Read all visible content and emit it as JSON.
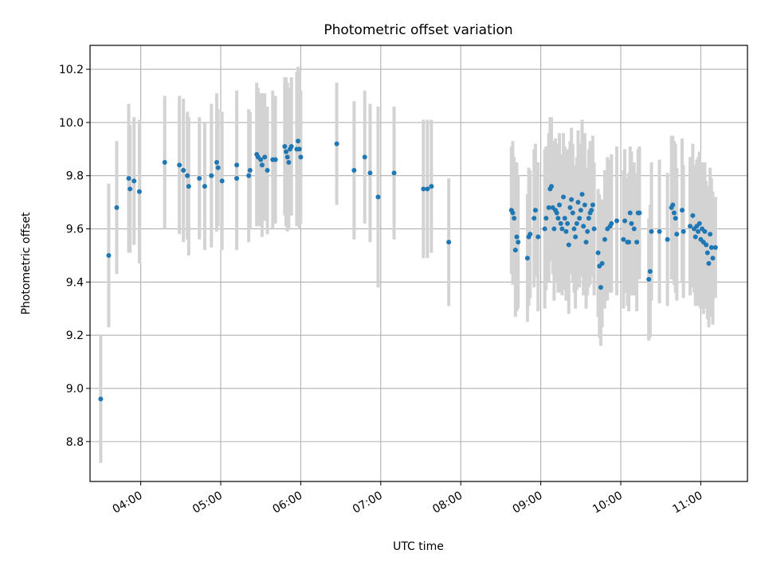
{
  "chart_data": {
    "type": "scatter",
    "title": "Photometric offset variation",
    "xlabel": "UTC time",
    "ylabel": "Photometric offset",
    "x_unit": "UTC time (HH:MM)",
    "xlim": [
      "03:22",
      "11:35"
    ],
    "ylim": [
      8.65,
      10.29
    ],
    "xticks": [
      "04:00",
      "05:00",
      "06:00",
      "07:00",
      "08:00",
      "09:00",
      "10:00",
      "11:00"
    ],
    "yticks": [
      "8.8",
      "9.0",
      "9.2",
      "9.4",
      "9.6",
      "9.8",
      "10.0",
      "10.2"
    ],
    "grid": true,
    "marker_color": "#1f77b4",
    "errorbar_color": "#d3d3d3",
    "series": [
      {
        "points": [
          [
            "03:30",
            8.96,
            0.24
          ],
          [
            "03:36",
            9.5,
            0.27
          ],
          [
            "03:42",
            9.68,
            0.25
          ],
          [
            "03:51",
            9.79,
            0.28
          ],
          [
            "03:52",
            9.75,
            0.24
          ],
          [
            "03:55",
            9.78,
            0.24
          ],
          [
            "03:59",
            9.74,
            0.27
          ],
          [
            "04:18",
            9.85,
            0.25
          ],
          [
            "04:29",
            9.84,
            0.26
          ],
          [
            "04:32",
            9.82,
            0.27
          ],
          [
            "04:35",
            9.8,
            0.24
          ],
          [
            "04:36",
            9.76,
            0.26
          ],
          [
            "04:44",
            9.79,
            0.23
          ],
          [
            "04:48",
            9.76,
            0.24
          ],
          [
            "04:53",
            9.8,
            0.27
          ],
          [
            "04:57",
            9.85,
            0.26
          ],
          [
            "04:58",
            9.83,
            0.22
          ],
          [
            "05:01",
            9.78,
            0.26
          ],
          [
            "05:12",
            9.84,
            0.28
          ],
          [
            "05:12",
            9.79,
            0.27
          ],
          [
            "05:21",
            9.8,
            0.25
          ],
          [
            "05:22",
            9.82,
            0.22
          ],
          [
            "05:27",
            9.88,
            0.27
          ],
          [
            "05:28",
            9.87,
            0.26
          ],
          [
            "05:30",
            9.86,
            0.25
          ],
          [
            "05:31",
            9.84,
            0.27
          ],
          [
            "05:33",
            9.87,
            0.24
          ],
          [
            "05:35",
            9.82,
            0.24
          ],
          [
            "05:39",
            9.86,
            0.26
          ],
          [
            "05:41",
            9.86,
            0.24
          ],
          [
            "05:48",
            9.91,
            0.26
          ],
          [
            "05:49",
            9.89,
            0.28
          ],
          [
            "05:50",
            9.87,
            0.28
          ],
          [
            "05:51",
            9.85,
            0.25
          ],
          [
            "05:52",
            9.9,
            0.23
          ],
          [
            "05:53",
            9.91,
            0.26
          ],
          [
            "05:57",
            9.9,
            0.29
          ],
          [
            "05:58",
            9.93,
            0.28
          ],
          [
            "05:59",
            9.9,
            0.3
          ],
          [
            "06:00",
            9.87,
            0.25
          ],
          [
            "06:27",
            9.92,
            0.23
          ],
          [
            "06:40",
            9.82,
            0.26
          ],
          [
            "06:48",
            9.87,
            0.25
          ],
          [
            "06:52",
            9.81,
            0.26
          ],
          [
            "06:58",
            9.72,
            0.34
          ],
          [
            "07:10",
            9.81,
            0.25
          ],
          [
            "07:32",
            9.75,
            0.26
          ],
          [
            "07:35",
            9.75,
            0.26
          ],
          [
            "07:38",
            9.76,
            0.25
          ],
          [
            "07:51",
            9.55,
            0.24
          ],
          [
            "08:38",
            9.67,
            0.24
          ],
          [
            "08:39",
            9.66,
            0.27
          ],
          [
            "08:40",
            9.64,
            0.23
          ],
          [
            "08:41",
            9.52,
            0.25
          ],
          [
            "08:42",
            9.57,
            0.28
          ],
          [
            "08:43",
            9.55,
            0.25
          ],
          [
            "08:50",
            9.49,
            0.24
          ],
          [
            "08:51",
            9.57,
            0.26
          ],
          [
            "08:52",
            9.58,
            0.24
          ],
          [
            "08:55",
            9.64,
            0.26
          ],
          [
            "08:56",
            9.67,
            0.25
          ],
          [
            "08:58",
            9.57,
            0.28
          ],
          [
            "09:03",
            9.6,
            0.3
          ],
          [
            "09:04",
            9.64,
            0.27
          ],
          [
            "09:06",
            9.68,
            0.28
          ],
          [
            "09:07",
            9.75,
            0.27
          ],
          [
            "09:08",
            9.76,
            0.26
          ],
          [
            "09:09",
            9.68,
            0.25
          ],
          [
            "09:10",
            9.6,
            0.27
          ],
          [
            "09:11",
            9.67,
            0.27
          ],
          [
            "09:12",
            9.66,
            0.25
          ],
          [
            "09:13",
            9.64,
            0.28
          ],
          [
            "09:14",
            9.69,
            0.27
          ],
          [
            "09:15",
            9.62,
            0.26
          ],
          [
            "09:16",
            9.6,
            0.25
          ],
          [
            "09:17",
            9.72,
            0.24
          ],
          [
            "09:18",
            9.64,
            0.27
          ],
          [
            "09:19",
            9.59,
            0.26
          ],
          [
            "09:20",
            9.62,
            0.28
          ],
          [
            "09:21",
            9.54,
            0.26
          ],
          [
            "09:22",
            9.68,
            0.25
          ],
          [
            "09:23",
            9.71,
            0.27
          ],
          [
            "09:24",
            9.66,
            0.26
          ],
          [
            "09:25",
            9.6,
            0.24
          ],
          [
            "09:26",
            9.57,
            0.27
          ],
          [
            "09:27",
            9.62,
            0.25
          ],
          [
            "09:28",
            9.7,
            0.27
          ],
          [
            "09:29",
            9.64,
            0.26
          ],
          [
            "09:30",
            9.67,
            0.25
          ],
          [
            "09:31",
            9.73,
            0.28
          ],
          [
            "09:32",
            9.61,
            0.26
          ],
          [
            "09:33",
            9.69,
            0.27
          ],
          [
            "09:34",
            9.55,
            0.25
          ],
          [
            "09:35",
            9.59,
            0.24
          ],
          [
            "09:36",
            9.64,
            0.26
          ],
          [
            "09:37",
            9.66,
            0.27
          ],
          [
            "09:38",
            9.67,
            0.25
          ],
          [
            "09:39",
            9.69,
            0.26
          ],
          [
            "09:40",
            9.6,
            0.25
          ],
          [
            "09:43",
            9.51,
            0.24
          ],
          [
            "09:44",
            9.46,
            0.27
          ],
          [
            "09:45",
            9.38,
            0.22
          ],
          [
            "09:46",
            9.47,
            0.24
          ],
          [
            "09:48",
            9.56,
            0.26
          ],
          [
            "09:50",
            9.6,
            0.27
          ],
          [
            "09:52",
            9.61,
            0.25
          ],
          [
            "09:53",
            9.62,
            0.26
          ],
          [
            "09:57",
            9.63,
            0.28
          ],
          [
            "10:02",
            9.56,
            0.26
          ],
          [
            "10:03",
            9.63,
            0.27
          ],
          [
            "10:05",
            9.55,
            0.24
          ],
          [
            "10:06",
            9.55,
            0.26
          ],
          [
            "10:07",
            9.66,
            0.25
          ],
          [
            "10:08",
            9.62,
            0.27
          ],
          [
            "10:10",
            9.6,
            0.25
          ],
          [
            "10:12",
            9.55,
            0.26
          ],
          [
            "10:13",
            9.66,
            0.24
          ],
          [
            "10:14",
            9.66,
            0.25
          ],
          [
            "10:21",
            9.41,
            0.23
          ],
          [
            "10:22",
            9.44,
            0.25
          ],
          [
            "10:23",
            9.59,
            0.26
          ],
          [
            "10:29",
            9.59,
            0.27
          ],
          [
            "10:35",
            9.56,
            0.25
          ],
          [
            "10:38",
            9.68,
            0.27
          ],
          [
            "10:39",
            9.69,
            0.26
          ],
          [
            "10:40",
            9.66,
            0.27
          ],
          [
            "10:41",
            9.64,
            0.28
          ],
          [
            "10:42",
            9.58,
            0.25
          ],
          [
            "10:46",
            9.67,
            0.27
          ],
          [
            "10:47",
            9.59,
            0.25
          ],
          [
            "10:52",
            9.61,
            0.26
          ],
          [
            "10:54",
            9.65,
            0.27
          ],
          [
            "10:55",
            9.6,
            0.24
          ],
          [
            "10:56",
            9.57,
            0.26
          ],
          [
            "10:57",
            9.61,
            0.25
          ],
          [
            "10:58",
            9.59,
            0.28
          ],
          [
            "10:59",
            9.62,
            0.27
          ],
          [
            "11:00",
            9.56,
            0.26
          ],
          [
            "11:01",
            9.6,
            0.25
          ],
          [
            "11:02",
            9.55,
            0.27
          ],
          [
            "11:03",
            9.59,
            0.26
          ],
          [
            "11:04",
            9.54,
            0.24
          ],
          [
            "11:05",
            9.51,
            0.25
          ],
          [
            "11:06",
            9.47,
            0.24
          ],
          [
            "11:07",
            9.58,
            0.25
          ],
          [
            "11:08",
            9.53,
            0.26
          ],
          [
            "11:09",
            9.49,
            0.25
          ],
          [
            "11:11",
            9.53,
            0.19
          ]
        ]
      }
    ]
  }
}
